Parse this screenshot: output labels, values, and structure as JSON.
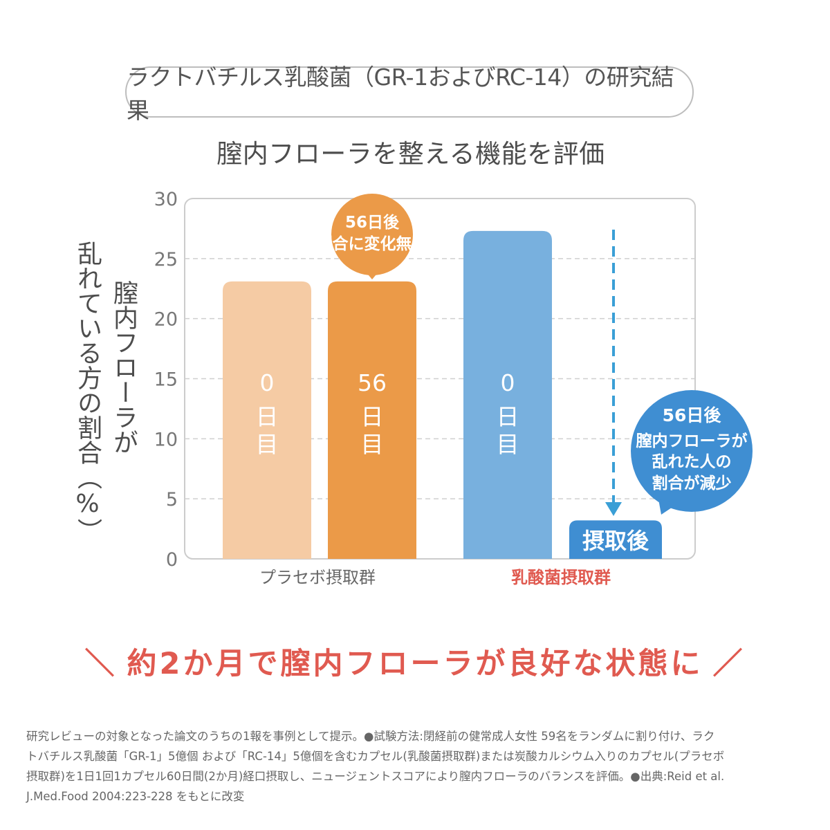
{
  "header": {
    "title": "ラクトバチルス乳酸菌（GR-1およびRC-14）の研究結果",
    "subtitle": "膣内フローラを整える機能を評価"
  },
  "chart_data": {
    "type": "bar",
    "ylabel_line1": "膣内フローラが",
    "ylabel_line2": "乱れている方の割合（%）",
    "yticks": [
      0,
      5,
      10,
      15,
      20,
      25,
      30
    ],
    "ylim": [
      0,
      30
    ],
    "grid": true,
    "groups": [
      {
        "label": "プラセボ摂取群",
        "color": "#666666"
      },
      {
        "label": "乳酸菌摂取群",
        "color": "#e05a50"
      }
    ],
    "bars": [
      {
        "group": 0,
        "value": 23.1,
        "label_lines": [
          "0",
          "日",
          "目"
        ],
        "color": "#f5cba4"
      },
      {
        "group": 0,
        "value": 23.1,
        "label_lines": [
          "56",
          "日",
          "目"
        ],
        "color": "#eb9a48"
      },
      {
        "group": 1,
        "value": 27.3,
        "label_lines": [
          "0",
          "日",
          "目"
        ],
        "color": "#78b0de"
      },
      {
        "group": 1,
        "value": 3.2,
        "label_lines": [
          "摂取後"
        ],
        "color": "#3f8ed2"
      }
    ],
    "annotations": [
      {
        "lines": [
          "56日後",
          "割合に変化無し"
        ],
        "color": "#eb9a48"
      },
      {
        "lines": [
          "56日後",
          "膣内フローラが",
          "乱れた人の",
          "割合が減少"
        ],
        "color": "#3f8ed2"
      }
    ],
    "arrow_color": "#3a9fd6"
  },
  "tagline": {
    "left_mark": "＼",
    "text": "約2か月で膣内フローラが良好な状態に",
    "right_mark": "／"
  },
  "footnote": {
    "line1": "研究レビューの対象となった論文のうちの1報を事例として提示。●試験方法:閉経前の健常成人女性 59名をランダムに割り付け、ラク",
    "line2": "トバチルス乳酸菌「GR-1」5億個 および「RC-14」5億個を含むカプセル(乳酸菌摂取群)または炭酸カルシウム入りのカプセル(プラセボ",
    "line3": "摂取群)を1日1回1カプセル60日間(2か月)経口摂取し、ニュージェントスコアにより膣内フローラのバランスを評価。●出典:Reid et al.",
    "line4": "J.Med.Food 2004:223-228 をもとに改変"
  }
}
